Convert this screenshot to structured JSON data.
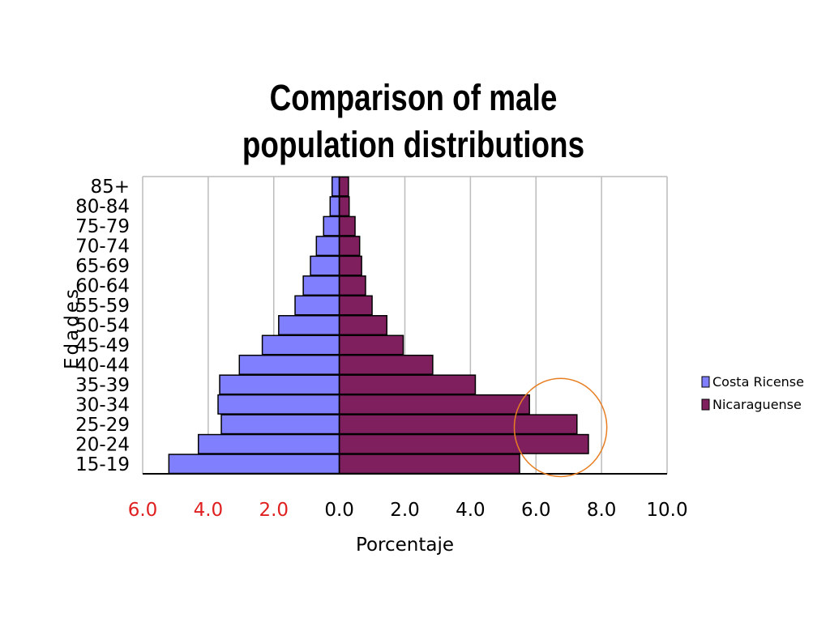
{
  "chart_data": {
    "type": "bar",
    "orientation": "horizontal",
    "title": "Comparison of male population distributions",
    "xlabel": "Porcentaje",
    "ylabel": "Edades",
    "xlim": [
      -6.0,
      10.0
    ],
    "xticks": [
      -6.0,
      -4.0,
      -2.0,
      0.0,
      2.0,
      4.0,
      6.0,
      8.0,
      10.0
    ],
    "xtick_labels": [
      "6.0",
      "4.0",
      "2.0",
      "0.0",
      "2.0",
      "4.0",
      "6.0",
      "8.0",
      "10.0"
    ],
    "xtick_colors": [
      "#e02020",
      "#e02020",
      "#e02020",
      "#000000",
      "#000000",
      "#000000",
      "#000000",
      "#000000",
      "#000000"
    ],
    "grid": true,
    "legend_position": "right",
    "categories": [
      "15-19",
      "20-24",
      "25-29",
      "30-34",
      "35-39",
      "40-44",
      "45-49",
      "50-54",
      "55-59",
      "60-64",
      "65-69",
      "70-74",
      "75-79",
      "80-84",
      "85+"
    ],
    "series": [
      {
        "name": "Costa Ricense",
        "color": "#8080ff",
        "values": [
          -5.2,
          -4.3,
          -3.6,
          -3.7,
          -3.65,
          -3.05,
          -2.35,
          -1.85,
          -1.35,
          -1.1,
          -0.88,
          -0.7,
          -0.48,
          -0.28,
          -0.22
        ]
      },
      {
        "name": "Nicaraguense",
        "color": "#7f1f5e",
        "values": [
          5.5,
          7.6,
          7.25,
          5.8,
          4.15,
          2.85,
          1.95,
          1.45,
          1.0,
          0.8,
          0.68,
          0.62,
          0.48,
          0.3,
          0.28
        ]
      }
    ],
    "annotation": {
      "type": "circle",
      "color": "#e87e22",
      "center": [
        6.75,
        "25-29"
      ],
      "radius_units": 1.5
    }
  }
}
